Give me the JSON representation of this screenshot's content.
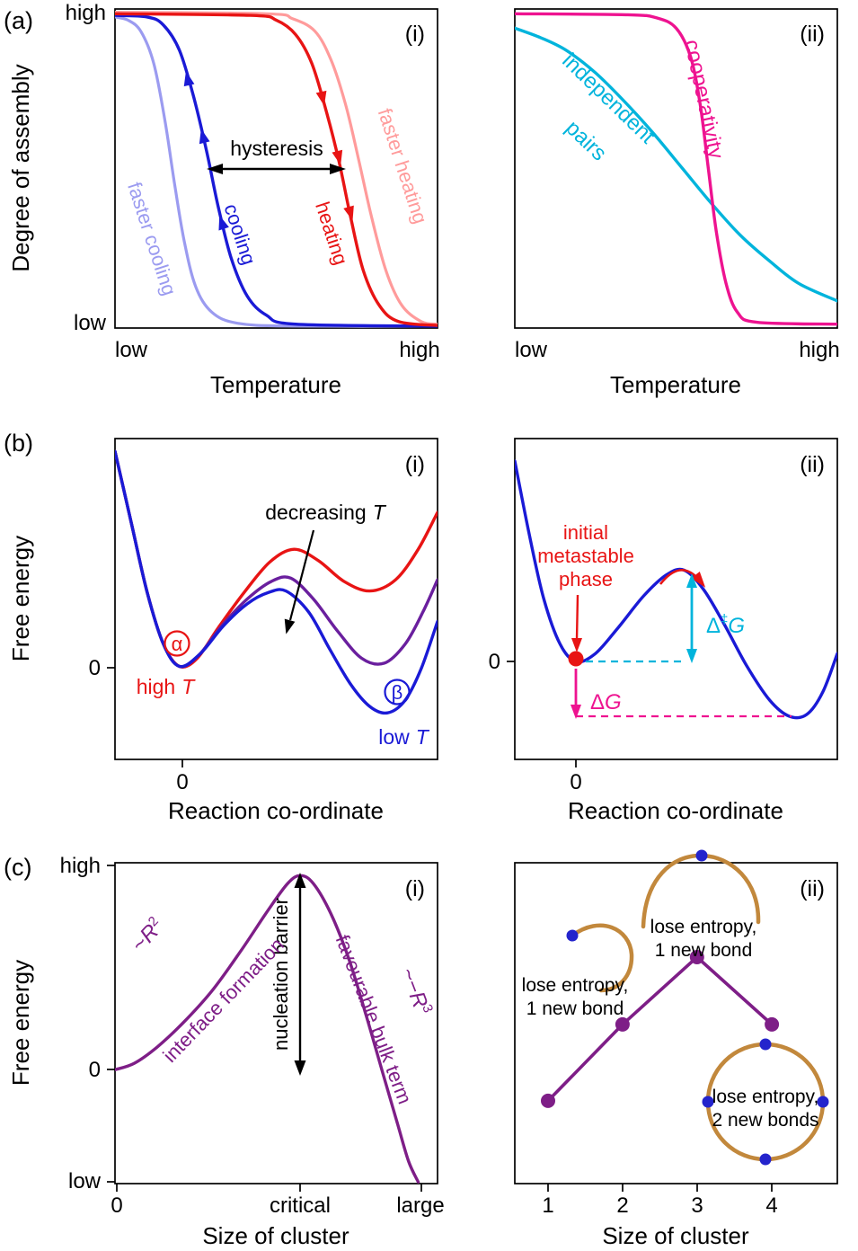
{
  "figure": {
    "panel_a": "(a)",
    "panel_b": "(b)",
    "panel_c": "(c)"
  },
  "colors": {
    "red": "#e81414",
    "blue": "#1a1ad6",
    "light_blue": "#9b9bf0",
    "salmon": "#ff9b9b",
    "cyan": "#00b4dc",
    "magenta": "#ee1390",
    "purple": "#6a1f9e",
    "violet": "#7e1e87",
    "tan": "#c2883c",
    "bond_blue": "#2424cc",
    "black": "#000000"
  },
  "chart_data": [
    {
      "id": "a-i",
      "type": "line",
      "tag": "(i)",
      "xlabel": "Temperature",
      "ylabel": "Degree of assembly",
      "x_tick_labels": [
        "low",
        "high"
      ],
      "y_tick_labels": [
        "high",
        "low"
      ],
      "labels": {
        "faster_cooling": "faster cooling",
        "cooling": "cooling",
        "heating": "heating",
        "faster_heating": "faster heating",
        "hysteresis": "hysteresis"
      },
      "series": [
        {
          "name": "faster cooling",
          "color": "#9b9bf0",
          "width": 3.2,
          "points": [
            [
              0,
              0.975
            ],
            [
              0.04,
              0.965
            ],
            [
              0.08,
              0.93
            ],
            [
              0.12,
              0.83
            ],
            [
              0.155,
              0.65
            ],
            [
              0.185,
              0.45
            ],
            [
              0.215,
              0.27
            ],
            [
              0.25,
              0.13
            ],
            [
              0.3,
              0.05
            ],
            [
              0.38,
              0.015
            ],
            [
              0.55,
              0.006
            ],
            [
              1,
              0.006
            ]
          ]
        },
        {
          "name": "faster heating",
          "color": "#ff9b9b",
          "width": 3.2,
          "points": [
            [
              0,
              0.99
            ],
            [
              0.47,
              0.985
            ],
            [
              0.55,
              0.97
            ],
            [
              0.62,
              0.93
            ],
            [
              0.67,
              0.84
            ],
            [
              0.715,
              0.7
            ],
            [
              0.755,
              0.53
            ],
            [
              0.795,
              0.35
            ],
            [
              0.84,
              0.18
            ],
            [
              0.89,
              0.07
            ],
            [
              0.95,
              0.02
            ],
            [
              1,
              0.012
            ]
          ]
        },
        {
          "name": "cooling",
          "color": "#1a1ad6",
          "width": 3.4,
          "points": [
            [
              0,
              0.98
            ],
            [
              0.1,
              0.975
            ],
            [
              0.15,
              0.95
            ],
            [
              0.2,
              0.87
            ],
            [
              0.245,
              0.72
            ],
            [
              0.285,
              0.55
            ],
            [
              0.32,
              0.38
            ],
            [
              0.36,
              0.22
            ],
            [
              0.41,
              0.1
            ],
            [
              0.47,
              0.04
            ],
            [
              0.56,
              0.012
            ],
            [
              1,
              0.006
            ]
          ]
        },
        {
          "name": "heating",
          "color": "#e81414",
          "width": 3.4,
          "points": [
            [
              0,
              0.985
            ],
            [
              0.42,
              0.98
            ],
            [
              0.5,
              0.965
            ],
            [
              0.56,
              0.92
            ],
            [
              0.61,
              0.83
            ],
            [
              0.655,
              0.68
            ],
            [
              0.695,
              0.52
            ],
            [
              0.73,
              0.35
            ],
            [
              0.77,
              0.18
            ],
            [
              0.82,
              0.07
            ],
            [
              0.88,
              0.02
            ],
            [
              1,
              0.008
            ]
          ]
        }
      ]
    },
    {
      "id": "a-ii",
      "type": "line",
      "tag": "(ii)",
      "xlabel": "Temperature",
      "x_tick_labels": [
        "low",
        "high"
      ],
      "labels": {
        "independent_line1": "independent",
        "independent_line2": "pairs",
        "cooperativity": "cooperativity"
      },
      "series": [
        {
          "name": "independent pairs",
          "color": "#00b4dc",
          "width": 3.4,
          "points": [
            [
              0,
              0.94
            ],
            [
              0.08,
              0.91
            ],
            [
              0.16,
              0.87
            ],
            [
              0.25,
              0.8
            ],
            [
              0.34,
              0.71
            ],
            [
              0.43,
              0.61
            ],
            [
              0.52,
              0.5
            ],
            [
              0.61,
              0.39
            ],
            [
              0.7,
              0.29
            ],
            [
              0.79,
              0.21
            ],
            [
              0.88,
              0.14
            ],
            [
              1,
              0.085
            ]
          ]
        },
        {
          "name": "cooperativity",
          "color": "#ee1390",
          "width": 3.4,
          "points": [
            [
              0,
              0.985
            ],
            [
              0.35,
              0.982
            ],
            [
              0.44,
              0.972
            ],
            [
              0.5,
              0.94
            ],
            [
              0.545,
              0.85
            ],
            [
              0.575,
              0.7
            ],
            [
              0.6,
              0.5
            ],
            [
              0.625,
              0.3
            ],
            [
              0.655,
              0.14
            ],
            [
              0.69,
              0.05
            ],
            [
              0.75,
              0.018
            ],
            [
              1,
              0.012
            ]
          ]
        }
      ]
    },
    {
      "id": "b-i",
      "type": "line",
      "tag": "(i)",
      "xlabel": "Reaction co-ordinate",
      "ylabel": "Free energy",
      "x_tick_labels": [
        "0"
      ],
      "y_tick_labels": [
        "0"
      ],
      "labels": {
        "decreasing_prefix": "decreasing",
        "decreasing_var": "T",
        "alpha": "α",
        "beta": "β",
        "high_prefix": "high",
        "high_var": "T",
        "low_prefix": "low",
        "low_var": "T"
      },
      "series": [
        {
          "name": "high T",
          "color": "#e81414",
          "width": 3.4,
          "points": [
            [
              0,
              0.96
            ],
            [
              0.05,
              0.74
            ],
            [
              0.1,
              0.52
            ],
            [
              0.15,
              0.36
            ],
            [
              0.2,
              0.29
            ],
            [
              0.255,
              0.315
            ],
            [
              0.32,
              0.41
            ],
            [
              0.4,
              0.52
            ],
            [
              0.48,
              0.615
            ],
            [
              0.555,
              0.655
            ],
            [
              0.63,
              0.62
            ],
            [
              0.71,
              0.555
            ],
            [
              0.79,
              0.525
            ],
            [
              0.87,
              0.56
            ],
            [
              0.94,
              0.655
            ],
            [
              1,
              0.77
            ]
          ]
        },
        {
          "name": "mid T",
          "color": "#6a1f9e",
          "width": 3.4,
          "points": [
            [
              0,
              0.96
            ],
            [
              0.05,
              0.74
            ],
            [
              0.1,
              0.52
            ],
            [
              0.15,
              0.36
            ],
            [
              0.2,
              0.29
            ],
            [
              0.26,
              0.325
            ],
            [
              0.33,
              0.415
            ],
            [
              0.41,
              0.5
            ],
            [
              0.485,
              0.555
            ],
            [
              0.545,
              0.565
            ],
            [
              0.615,
              0.5
            ],
            [
              0.69,
              0.4
            ],
            [
              0.765,
              0.315
            ],
            [
              0.835,
              0.3
            ],
            [
              0.9,
              0.36
            ],
            [
              0.955,
              0.46
            ],
            [
              1,
              0.56
            ]
          ]
        },
        {
          "name": "low T",
          "color": "#1a1ad6",
          "width": 3.4,
          "points": [
            [
              0,
              0.96
            ],
            [
              0.05,
              0.74
            ],
            [
              0.1,
              0.52
            ],
            [
              0.15,
              0.36
            ],
            [
              0.2,
              0.29
            ],
            [
              0.265,
              0.33
            ],
            [
              0.335,
              0.415
            ],
            [
              0.41,
              0.485
            ],
            [
              0.475,
              0.52
            ],
            [
              0.53,
              0.525
            ],
            [
              0.6,
              0.46
            ],
            [
              0.665,
              0.345
            ],
            [
              0.73,
              0.235
            ],
            [
              0.79,
              0.165
            ],
            [
              0.845,
              0.145
            ],
            [
              0.9,
              0.185
            ],
            [
              0.95,
              0.285
            ],
            [
              1,
              0.43
            ]
          ]
        }
      ]
    },
    {
      "id": "b-ii",
      "type": "line",
      "tag": "(ii)",
      "xlabel": "Reaction co-ordinate",
      "x_tick_labels": [
        "0"
      ],
      "y_tick_labels": [
        "0"
      ],
      "labels": {
        "initial_line1": "initial",
        "initial_line2": "metastable",
        "initial_line3": "phase",
        "barrier_delta": "Δ",
        "barrier_dagger": "‡",
        "barrier_var": "G",
        "dg_delta": "Δ",
        "dg_var": "G"
      },
      "series": [
        {
          "name": "free energy landscape",
          "color": "#1a1ad6",
          "width": 3.4,
          "points": [
            [
              0,
              0.93
            ],
            [
              0.045,
              0.7
            ],
            [
              0.09,
              0.5
            ],
            [
              0.14,
              0.36
            ],
            [
              0.19,
              0.305
            ],
            [
              0.25,
              0.33
            ],
            [
              0.32,
              0.41
            ],
            [
              0.4,
              0.51
            ],
            [
              0.47,
              0.575
            ],
            [
              0.525,
              0.59
            ],
            [
              0.585,
              0.53
            ],
            [
              0.65,
              0.42
            ],
            [
              0.72,
              0.29
            ],
            [
              0.79,
              0.185
            ],
            [
              0.85,
              0.135
            ],
            [
              0.905,
              0.14
            ],
            [
              0.955,
              0.21
            ],
            [
              1,
              0.33
            ]
          ]
        }
      ]
    },
    {
      "id": "c-i",
      "type": "line",
      "tag": "(i)",
      "xlabel": "Size of cluster",
      "ylabel": "Free energy",
      "x_tick_labels": [
        "0",
        "critical",
        "large"
      ],
      "y_tick_labels": [
        "high",
        "0",
        "low"
      ],
      "labels": {
        "r2_prefix": "~",
        "r2_var": "R",
        "r2_sup": "2",
        "interface": "interface formation",
        "nucleation": "nucleation barrier",
        "bulk": "favourable bulk term",
        "r3_prefix": "~−",
        "r3_var": "R",
        "r3_sup": "3"
      },
      "series": [
        {
          "name": "nucleation curve",
          "color": "#7e1e87",
          "width": 3.4,
          "points": [
            [
              0,
              0.355
            ],
            [
              0.06,
              0.375
            ],
            [
              0.13,
              0.425
            ],
            [
              0.21,
              0.5
            ],
            [
              0.3,
              0.6
            ],
            [
              0.39,
              0.725
            ],
            [
              0.47,
              0.845
            ],
            [
              0.535,
              0.935
            ],
            [
              0.575,
              0.96
            ],
            [
              0.615,
              0.935
            ],
            [
              0.67,
              0.84
            ],
            [
              0.725,
              0.7
            ],
            [
              0.78,
              0.52
            ],
            [
              0.83,
              0.345
            ],
            [
              0.875,
              0.19
            ],
            [
              0.91,
              0.07
            ],
            [
              0.94,
              0.005
            ]
          ]
        }
      ]
    },
    {
      "id": "c-ii",
      "type": "line",
      "tag": "(ii)",
      "xlabel": "Size of cluster",
      "x_tick_labels": [
        "1",
        "2",
        "3",
        "4"
      ],
      "labels": {
        "loop_top_line1": "lose entropy,",
        "loop_top_line2": "1 new bond",
        "loop_left_line1": "lose entropy,",
        "loop_left_line2": "1 new bond",
        "loop_circle_line1": "lose entropy,",
        "loop_circle_line2": "2 new bonds"
      },
      "series": [
        {
          "name": "cluster free energy",
          "color": "#7e1e87",
          "width": 3.6,
          "smooth": false,
          "dots": true,
          "dot_r": 8,
          "points": [
            [
              0.103,
              0.258
            ],
            [
              0.334,
              0.496
            ],
            [
              0.565,
              0.706
            ],
            [
              0.797,
              0.496
            ]
          ]
        }
      ]
    }
  ]
}
